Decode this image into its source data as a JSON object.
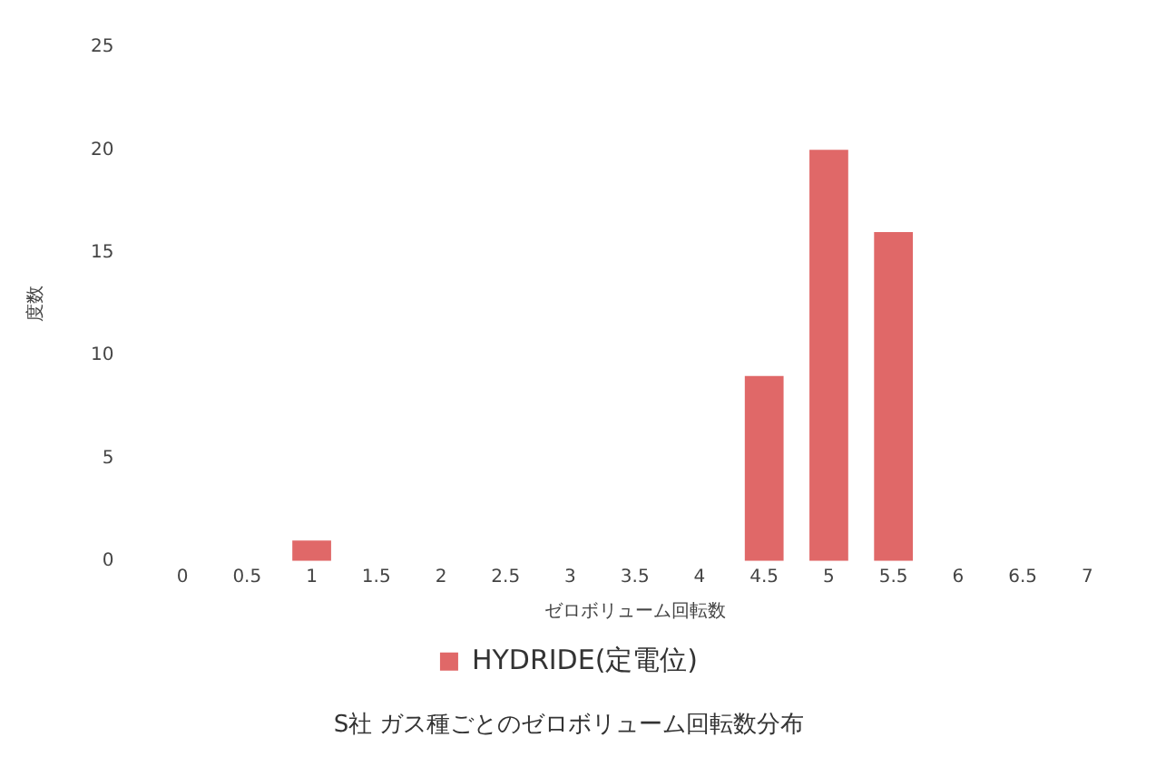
{
  "chart_data": {
    "type": "bar",
    "title": "S社 ガス種ごとのゼロボリューム回転数分布",
    "xlabel": "ゼロボリューム回転数",
    "ylabel": "度数",
    "categories": [
      "0",
      "0.5",
      "1",
      "1.5",
      "2",
      "2.5",
      "3",
      "3.5",
      "4",
      "4.5",
      "5",
      "5.5",
      "6",
      "6.5",
      "7"
    ],
    "series": [
      {
        "name": "HYDRIDE(定電位)",
        "color": "#e06868",
        "values": [
          0,
          0,
          1,
          0,
          0,
          0,
          0,
          0,
          0,
          9,
          20,
          16,
          0,
          0,
          0
        ]
      }
    ],
    "ylim": [
      0,
      25
    ],
    "yticks": [
      0,
      5,
      10,
      15,
      20,
      25
    ],
    "grid": false,
    "legend": "bottom"
  }
}
